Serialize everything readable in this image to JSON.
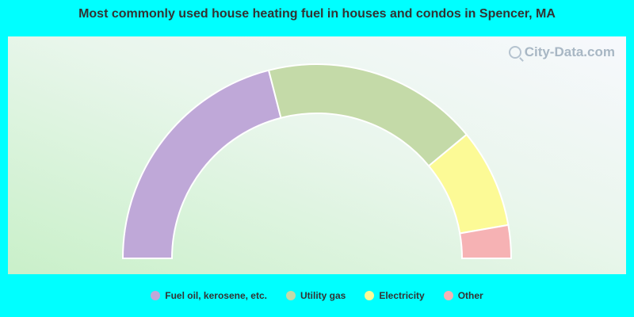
{
  "title": "Most commonly used house heating fuel in houses and condos in Spencer, MA",
  "watermark": "City-Data.com",
  "chart_data": {
    "type": "pie",
    "subtype": "semi-donut",
    "title": "Most commonly used house heating fuel in houses and condos in Spencer, MA",
    "legend_placement": "bottom",
    "series": [
      {
        "name": "Fuel oil, kerosene, etc.",
        "value": 42.0,
        "color": "#bfa8d8"
      },
      {
        "name": "Utility gas",
        "value": 36.0,
        "color": "#c4daa8"
      },
      {
        "name": "Electricity",
        "value": 16.5,
        "color": "#fcfa96"
      },
      {
        "name": "Other",
        "value": 5.5,
        "color": "#f6b2b4"
      }
    ]
  }
}
